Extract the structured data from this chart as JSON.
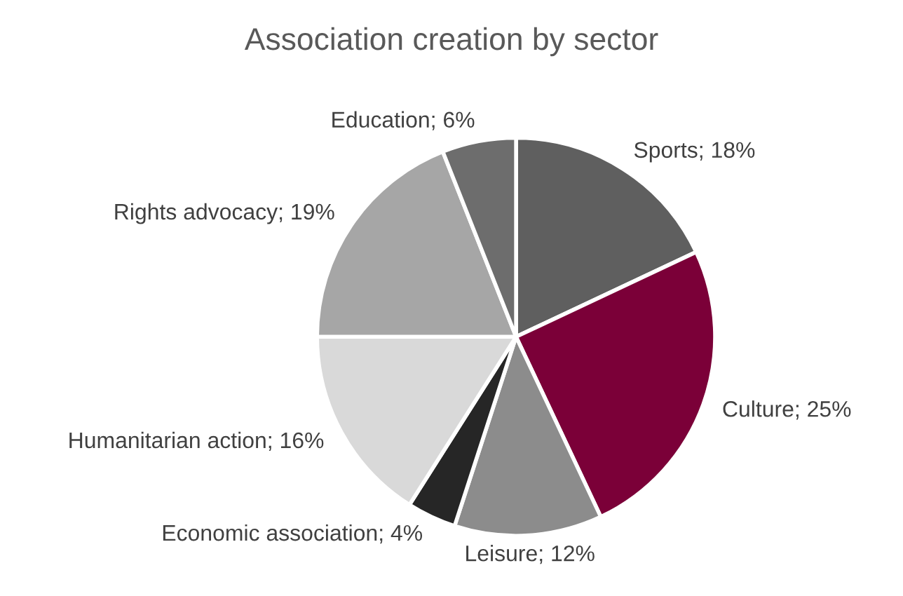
{
  "chart_data": {
    "type": "pie",
    "title": "Association creation by sector",
    "categories": [
      "Sports",
      "Culture",
      "Leisure",
      "Economic association",
      "Humanitarian action",
      "Rights advocacy",
      "Education"
    ],
    "values": [
      18,
      25,
      12,
      4,
      16,
      19,
      6
    ],
    "value_labels": [
      "18%",
      "25%",
      "12%",
      "4%",
      "16%",
      "19%",
      "6%"
    ],
    "colors": [
      "#5f5f5f",
      "#7b0038",
      "#8c8c8c",
      "#262626",
      "#d9d9d9",
      "#a6a6a6",
      "#6d6d6d"
    ],
    "data_labels": true,
    "legend": false
  }
}
